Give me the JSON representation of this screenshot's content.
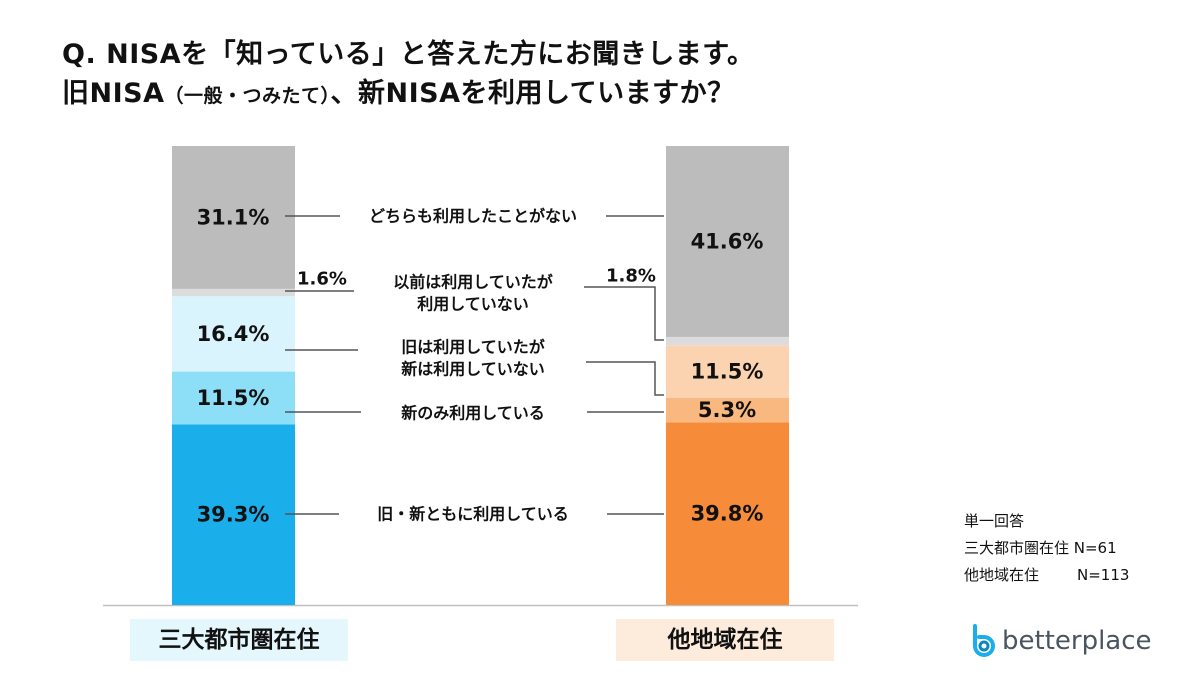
{
  "title": {
    "line1": "Q. NISAを「知っている」と答えた方にお聞きします。",
    "line2_a": "旧NISA",
    "line2_paren": "（一般・つみたて）",
    "line2_b": "、新NISAを利用していますか？"
  },
  "chart_data": {
    "type": "bar",
    "stacked": true,
    "unit": "%",
    "categories": [
      "三大都市圏在住",
      "他地域在住"
    ],
    "series": [
      {
        "name": "旧・新ともに利用している",
        "values": [
          39.3,
          39.8
        ],
        "labels": [
          "39.3%",
          "39.8%"
        ],
        "colors": [
          "#1aaeea",
          "#f68c3a"
        ]
      },
      {
        "name": "新のみ利用している",
        "values": [
          11.5,
          5.3
        ],
        "labels": [
          "11.5%",
          "5.3%"
        ],
        "colors": [
          "#8ddff7",
          "#f9b87f"
        ]
      },
      {
        "name": "旧は利用していたが新は利用していない",
        "lines": [
          "旧は利用していたが",
          "新は利用していない"
        ],
        "values": [
          16.4,
          11.5
        ],
        "labels": [
          "16.4%",
          "11.5%"
        ],
        "colors": [
          "#d9f4fc",
          "#fcd3b0"
        ]
      },
      {
        "name": "以前は利用していたが利用していない",
        "lines": [
          "以前は利用していたが",
          "利用していない"
        ],
        "values": [
          1.6,
          1.8
        ],
        "labels": [
          "1.6%",
          "1.8%"
        ],
        "colors": [
          "#dcdcdc",
          "#dcdcdc"
        ]
      },
      {
        "name": "どちらも利用したことがない",
        "values": [
          31.1,
          41.6
        ],
        "labels": [
          "31.1%",
          "41.6%"
        ],
        "colors": [
          "#bcbcbc",
          "#bcbcbc"
        ]
      }
    ]
  },
  "groups": [
    {
      "label": "三大都市圏在住",
      "bg": "#e4f7fd"
    },
    {
      "label": "他地域在住",
      "bg": "#fdebdc"
    }
  ],
  "notes": {
    "line1": "単一回答",
    "line2": "三大都市圏在住 N=61",
    "line3_label": "他地域在住",
    "line3_value": "N=113"
  },
  "brand": {
    "name": "betterplace",
    "color": "#1aaeea"
  }
}
